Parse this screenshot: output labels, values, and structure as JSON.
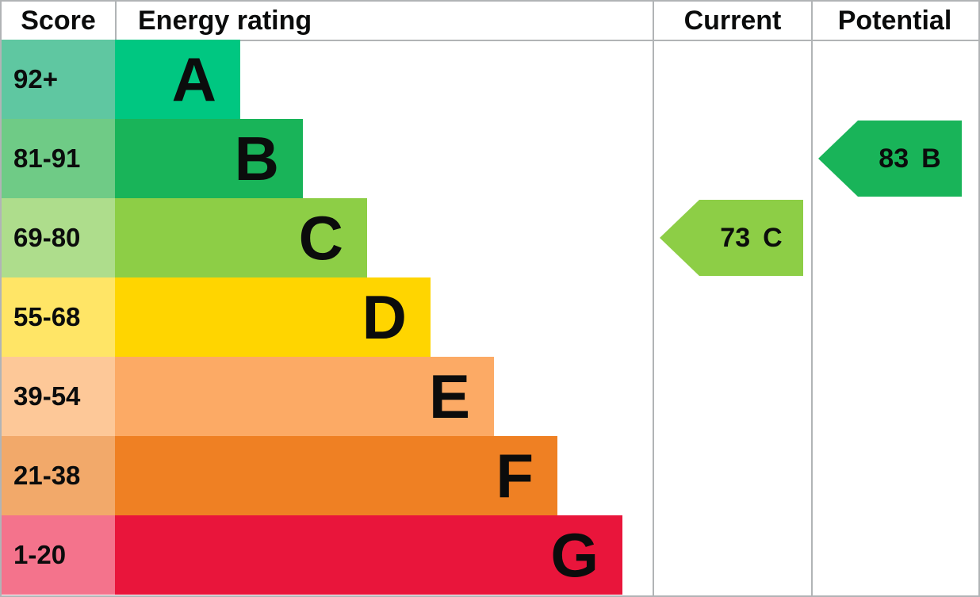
{
  "header": {
    "score": "Score",
    "energy_rating": "Energy rating",
    "current": "Current",
    "potential": "Potential"
  },
  "bands": [
    {
      "letter": "A",
      "score": "92+",
      "color": "#00c781",
      "score_color": "#5fc7a1"
    },
    {
      "letter": "B",
      "score": "81-91",
      "color": "#19b459",
      "score_color": "#6fcb86"
    },
    {
      "letter": "C",
      "score": "69-80",
      "color": "#8dce46",
      "score_color": "#aedd8c"
    },
    {
      "letter": "D",
      "score": "55-68",
      "color": "#ffd500",
      "score_color": "#ffe566"
    },
    {
      "letter": "E",
      "score": "39-54",
      "color": "#fcaa65",
      "score_color": "#fdc898"
    },
    {
      "letter": "F",
      "score": "21-38",
      "color": "#ef8023",
      "score_color": "#f2a96a"
    },
    {
      "letter": "G",
      "score": "1-20",
      "color": "#e9153b",
      "score_color": "#f4738c"
    }
  ],
  "current": {
    "value": "73",
    "band": "C",
    "color": "#8dce46"
  },
  "potential": {
    "value": "83",
    "band": "B",
    "color": "#19b459"
  },
  "colors": {
    "border": "#b1b4b6",
    "text": "#0b0c0c",
    "background": "#ffffff"
  },
  "chart_data": {
    "type": "bar",
    "title": "EPC Energy rating",
    "columns": [
      "Score",
      "Energy rating",
      "Current",
      "Potential"
    ],
    "categories": [
      "A",
      "B",
      "C",
      "D",
      "E",
      "F",
      "G"
    ],
    "score_ranges": [
      "92+",
      "81-91",
      "69-80",
      "55-68",
      "39-54",
      "21-38",
      "1-20"
    ],
    "band_colors": [
      "#00c781",
      "#19b459",
      "#8dce46",
      "#ffd500",
      "#fcaa65",
      "#ef8023",
      "#e9153b"
    ],
    "bar_relative_lengths": [
      1,
      1.5,
      2,
      2.5,
      3,
      3.5,
      4
    ],
    "current": {
      "value": 73,
      "band": "C"
    },
    "potential": {
      "value": 83,
      "band": "B"
    },
    "legend_position": "none",
    "grid": false
  }
}
